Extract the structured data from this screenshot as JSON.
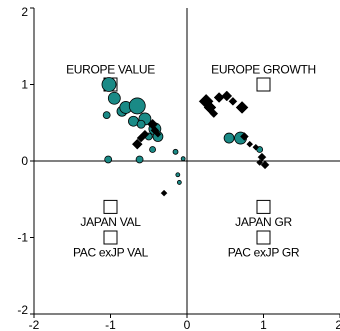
{
  "chart_data": {
    "type": "scatter",
    "xlim": [
      -2,
      2
    ],
    "ylim": [
      -2,
      2
    ],
    "x_ticks": [
      -2,
      -1,
      0,
      1,
      2
    ],
    "y_ticks": [
      -2,
      -1,
      0,
      1,
      2
    ],
    "x_tick_labels": [
      "-2",
      "-1",
      "0",
      "1",
      "2"
    ],
    "y_tick_labels": [
      "-2",
      "-1",
      "0",
      "1",
      "2"
    ],
    "grid": false,
    "zero_lines": true,
    "colors": {
      "teal": "#1a8a86",
      "black": "#000000",
      "axis": "#000000",
      "box_fill": "#ffffff"
    },
    "reference_boxes": [
      {
        "label": "EUROPE VALUE",
        "x": -1,
        "y": 1,
        "label_pos": "above"
      },
      {
        "label": "EUROPE GROWTH",
        "x": 1,
        "y": 1,
        "label_pos": "above"
      },
      {
        "label": "JAPAN VAL",
        "x": -1,
        "y": -0.6,
        "label_pos": "below"
      },
      {
        "label": "JAPAN GR",
        "x": 1,
        "y": -0.6,
        "label_pos": "below"
      },
      {
        "label": "PAC exJP VAL",
        "x": -1,
        "y": -1.0,
        "label_pos": "below"
      },
      {
        "label": "PAC exJP GR",
        "x": 1,
        "y": -1.0,
        "label_pos": "below"
      }
    ],
    "series": [
      {
        "marker": "circle",
        "color": "teal",
        "points": [
          {
            "x": -1.02,
            "y": 1.0,
            "size": 7
          },
          {
            "x": -0.95,
            "y": 0.82,
            "size": 6
          },
          {
            "x": -0.85,
            "y": 0.65,
            "size": 5
          },
          {
            "x": -0.8,
            "y": 0.7,
            "size": 6
          },
          {
            "x": -0.65,
            "y": 0.72,
            "size": 8
          },
          {
            "x": -0.7,
            "y": 0.52,
            "size": 5
          },
          {
            "x": -0.55,
            "y": 0.55,
            "size": 6
          },
          {
            "x": -0.42,
            "y": 0.42,
            "size": 6
          },
          {
            "x": -0.38,
            "y": 0.32,
            "size": 5
          },
          {
            "x": -0.6,
            "y": 0.48,
            "size": 4
          },
          {
            "x": -1.05,
            "y": 0.6,
            "size": 3.5
          },
          {
            "x": -1.03,
            "y": 0.02,
            "size": 3.5
          },
          {
            "x": -0.62,
            "y": 0.02,
            "size": 3.5
          },
          {
            "x": -0.45,
            "y": 0.15,
            "size": 3
          },
          {
            "x": -0.5,
            "y": 0.32,
            "size": 3.5
          },
          {
            "x": -0.15,
            "y": 0.12,
            "size": 2.5
          },
          {
            "x": -0.05,
            "y": 0.03,
            "size": 2
          },
          {
            "x": 0.55,
            "y": 0.3,
            "size": 5
          },
          {
            "x": 0.7,
            "y": 0.3,
            "size": 6
          },
          {
            "x": 0.95,
            "y": 0.15,
            "size": 3
          },
          {
            "x": -0.12,
            "y": -0.18,
            "size": 2
          },
          {
            "x": -0.1,
            "y": -0.28,
            "size": 2
          }
        ]
      },
      {
        "marker": "diamond",
        "color": "black",
        "points": [
          {
            "x": 0.25,
            "y": 0.78,
            "size": 7
          },
          {
            "x": 0.3,
            "y": 0.7,
            "size": 6
          },
          {
            "x": 0.42,
            "y": 0.83,
            "size": 5
          },
          {
            "x": 0.52,
            "y": 0.85,
            "size": 5
          },
          {
            "x": 0.6,
            "y": 0.78,
            "size": 4
          },
          {
            "x": 0.72,
            "y": 0.7,
            "size": 6
          },
          {
            "x": 0.35,
            "y": 0.62,
            "size": 4
          },
          {
            "x": 0.82,
            "y": 0.22,
            "size": 3
          },
          {
            "x": 0.9,
            "y": 0.18,
            "size": 3
          },
          {
            "x": 0.98,
            "y": 0.05,
            "size": 4
          },
          {
            "x": 1.02,
            "y": -0.05,
            "size": 4
          },
          {
            "x": 0.95,
            "y": -0.02,
            "size": 3
          },
          {
            "x": 0.75,
            "y": 0.32,
            "size": 4
          },
          {
            "x": -0.65,
            "y": 0.22,
            "size": 5
          },
          {
            "x": -0.6,
            "y": 0.3,
            "size": 4
          },
          {
            "x": -0.55,
            "y": 0.35,
            "size": 4
          },
          {
            "x": -0.45,
            "y": 0.48,
            "size": 5
          },
          {
            "x": -0.42,
            "y": 0.4,
            "size": 4
          },
          {
            "x": -0.38,
            "y": 0.35,
            "size": 3
          },
          {
            "x": -0.3,
            "y": -0.42,
            "size": 3
          }
        ]
      }
    ]
  }
}
